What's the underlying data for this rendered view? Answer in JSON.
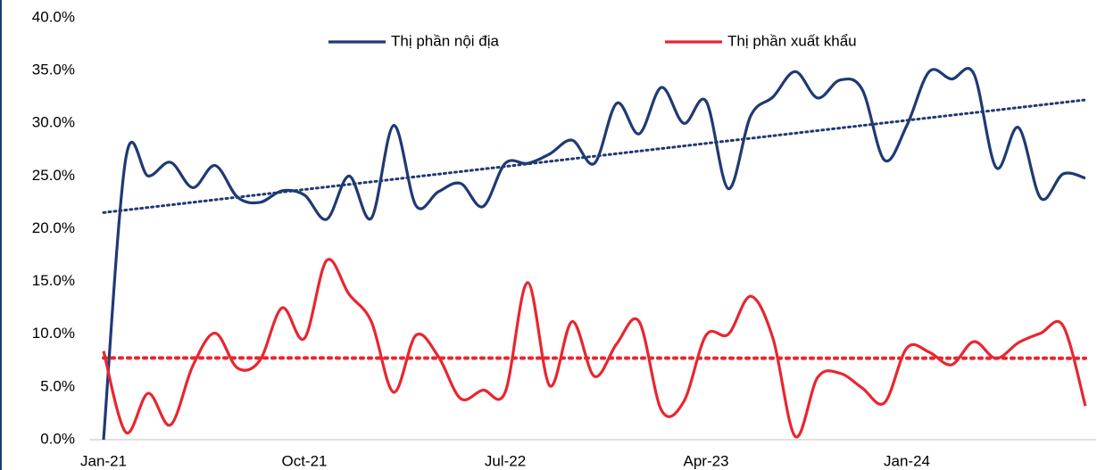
{
  "chart_data": {
    "type": "line",
    "categories": [
      "Jan-21",
      null,
      null,
      null,
      null,
      null,
      null,
      null,
      null,
      "Oct-21",
      null,
      null,
      null,
      null,
      null,
      null,
      null,
      null,
      "Jul-22",
      null,
      null,
      null,
      null,
      null,
      null,
      null,
      null,
      "Apr-23",
      null,
      null,
      null,
      null,
      null,
      null,
      null,
      null,
      "Jan-24",
      null,
      null,
      null,
      null,
      null,
      null,
      null,
      null
    ],
    "series": [
      {
        "name": "Thị phần nội địa",
        "color": "#1f3a73",
        "trendline": true,
        "values": [
          0,
          26.7,
          25.0,
          26.3,
          23.9,
          26.0,
          23.0,
          22.5,
          23.6,
          23.2,
          20.9,
          25.0,
          21.0,
          29.8,
          22.2,
          23.5,
          24.3,
          22.1,
          26.2,
          26.2,
          27.1,
          28.4,
          26.2,
          31.9,
          29.0,
          33.4,
          30.0,
          32.1,
          23.8,
          30.7,
          32.5,
          34.9,
          32.4,
          34.1,
          33.2,
          26.5,
          29.8,
          34.9,
          34.2,
          34.7,
          25.8,
          29.6,
          22.9,
          25.2,
          24.8
        ]
      },
      {
        "name": "Thị phần xuất khẩu",
        "color": "#e8262f",
        "trendline": true,
        "values": [
          8.4,
          0.7,
          4.4,
          1.4,
          7.0,
          10.1,
          6.8,
          7.5,
          12.5,
          9.6,
          17.0,
          13.8,
          11.2,
          4.5,
          9.9,
          7.9,
          3.9,
          4.7,
          4.5,
          14.9,
          5.1,
          11.2,
          6.0,
          9.1,
          11.2,
          2.8,
          3.6,
          9.9,
          10.0,
          13.6,
          9.6,
          0.3,
          5.9,
          6.3,
          4.9,
          3.5,
          8.7,
          8.3,
          7.1,
          9.3,
          7.7,
          9.2,
          10.1,
          10.8,
          3.2
        ]
      }
    ],
    "ylim": [
      0,
      40
    ],
    "yticks": [
      {
        "value": 0,
        "label": "0.0%"
      },
      {
        "value": 5,
        "label": "5.0%"
      },
      {
        "value": 10,
        "label": "10.0%"
      },
      {
        "value": 15,
        "label": "15.0%"
      },
      {
        "value": 20,
        "label": "20.0%"
      },
      {
        "value": 25,
        "label": "25.0%"
      },
      {
        "value": 30,
        "label": "30.0%"
      },
      {
        "value": 35,
        "label": "35.0%"
      },
      {
        "value": 40,
        "label": "40.0%"
      }
    ],
    "grid": false,
    "smooth": true,
    "legend": "top"
  }
}
